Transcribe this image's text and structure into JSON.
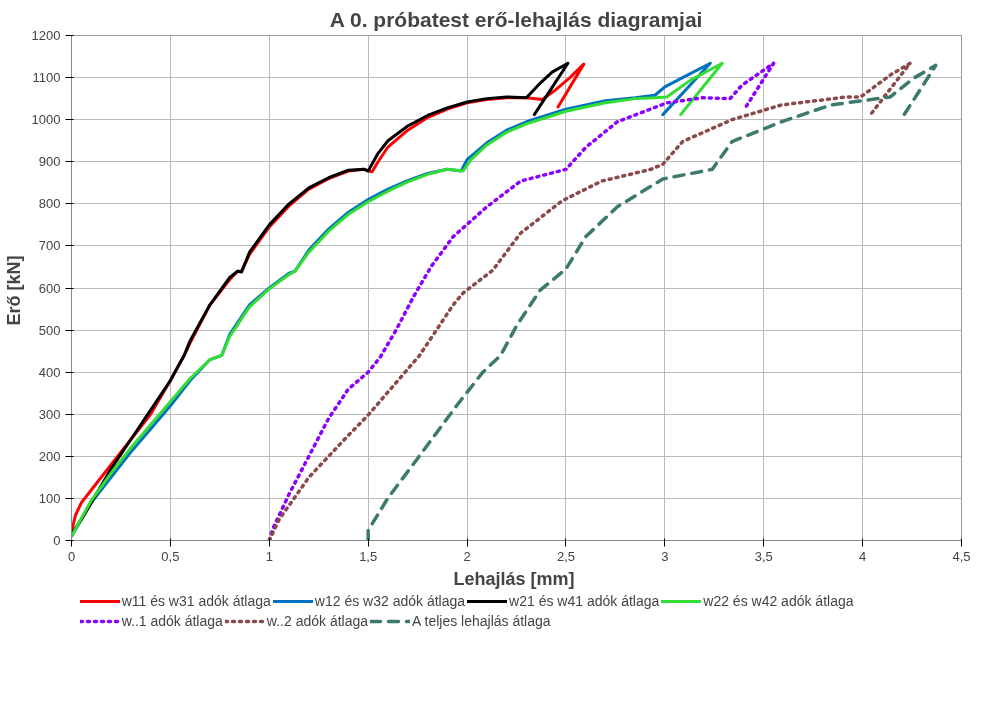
{
  "chart_data": {
    "type": "line",
    "title": "A 0. próbatest erő-lehajlás diagramjai",
    "xlabel": "Lehajlás  [mm]",
    "ylabel": "Erő  [kN]",
    "xlim": [
      0,
      4.5
    ],
    "ylim": [
      0,
      1200
    ],
    "xticks": [
      0,
      {
        "value": 0.5,
        "label": "0,5"
      },
      1,
      {
        "value": 1.5,
        "label": "1,5"
      },
      2,
      {
        "value": 2.5,
        "label": "2,5"
      },
      3,
      {
        "value": 3.5,
        "label": "3,5"
      },
      4,
      {
        "value": 4.5,
        "label": "4,5"
      }
    ],
    "yticks": [
      0,
      100,
      200,
      300,
      400,
      500,
      600,
      700,
      800,
      900,
      1000,
      1100,
      1200
    ],
    "grid": true,
    "legend": "bottom",
    "marker": "none",
    "series": [
      {
        "name": "w11 és w31 adók átlaga",
        "color": "#ff0000",
        "line_style": "solid",
        "x": [
          0,
          0.02,
          0.05,
          0.1,
          0.2,
          0.3,
          0.4,
          0.5,
          0.57,
          0.6,
          0.7,
          0.8,
          0.84,
          0.86,
          0.9,
          1.0,
          1.1,
          1.2,
          1.3,
          1.4,
          1.48,
          1.52,
          1.55,
          1.6,
          1.7,
          1.8,
          1.9,
          2.0,
          2.1,
          2.2,
          2.3,
          2.38,
          2.44,
          2.52,
          2.59,
          2.46
        ],
        "values": [
          20,
          60,
          90,
          120,
          180,
          240,
          300,
          380,
          440,
          470,
          560,
          620,
          640,
          640,
          680,
          745,
          795,
          835,
          860,
          878,
          882,
          876,
          900,
          935,
          975,
          1005,
          1025,
          1040,
          1048,
          1052,
          1052,
          1048,
          1068,
          1100,
          1132,
          1030
        ]
      },
      {
        "name": "w12 és w32 adók átlaga",
        "color": "#0070c0",
        "line_style": "solid",
        "x": [
          0,
          0.1,
          0.2,
          0.3,
          0.4,
          0.5,
          0.6,
          0.7,
          0.76,
          0.8,
          0.9,
          1.0,
          1.1,
          1.13,
          1.2,
          1.3,
          1.4,
          1.5,
          1.6,
          1.7,
          1.8,
          1.9,
          1.97,
          2.0,
          2.1,
          2.2,
          2.3,
          2.5,
          2.7,
          2.85,
          2.95,
          3.0,
          3.09,
          3.23,
          2.99
        ],
        "values": [
          10,
          90,
          150,
          210,
          265,
          320,
          380,
          430,
          440,
          490,
          560,
          600,
          635,
          640,
          690,
          740,
          780,
          810,
          835,
          855,
          872,
          882,
          878,
          905,
          945,
          975,
          995,
          1025,
          1045,
          1052,
          1058,
          1078,
          1100,
          1134,
          1012
        ]
      },
      {
        "name": "w21 és w41 adók átlaga",
        "color": "#000000",
        "line_style": "solid",
        "x": [
          0,
          0.05,
          0.1,
          0.2,
          0.3,
          0.4,
          0.5,
          0.57,
          0.6,
          0.7,
          0.8,
          0.84,
          0.86,
          0.9,
          1.0,
          1.1,
          1.2,
          1.3,
          1.4,
          1.48,
          1.5,
          1.55,
          1.6,
          1.7,
          1.8,
          1.9,
          2.0,
          2.1,
          2.2,
          2.3,
          2.37,
          2.43,
          2.51,
          2.34
        ],
        "values": [
          15,
          50,
          90,
          170,
          240,
          310,
          380,
          440,
          475,
          560,
          625,
          640,
          638,
          685,
          750,
          800,
          838,
          862,
          880,
          882,
          878,
          920,
          950,
          985,
          1010,
          1028,
          1042,
          1050,
          1054,
          1052,
          1087,
          1113,
          1134,
          1012
        ]
      },
      {
        "name": "w22 és w42 adók átlaga",
        "color": "#33dd33",
        "line_style": "solid",
        "x": [
          0,
          0.1,
          0.2,
          0.3,
          0.4,
          0.5,
          0.6,
          0.7,
          0.76,
          0.8,
          0.9,
          1.0,
          1.1,
          1.13,
          1.2,
          1.3,
          1.4,
          1.5,
          1.6,
          1.7,
          1.8,
          1.9,
          1.98,
          2.02,
          2.1,
          2.2,
          2.3,
          2.5,
          2.7,
          2.85,
          2.95,
          3.01,
          3.13,
          3.29,
          3.08
        ],
        "values": [
          10,
          95,
          160,
          220,
          275,
          330,
          385,
          430,
          440,
          485,
          555,
          598,
          632,
          640,
          685,
          735,
          775,
          805,
          830,
          852,
          870,
          882,
          878,
          905,
          940,
          970,
          990,
          1020,
          1040,
          1050,
          1052,
          1054,
          1094,
          1134,
          1012
        ]
      },
      {
        "name": "w..1 adók átlaga",
        "color": "#8b00ff",
        "line_style": "dotted",
        "x": [
          1.0,
          1.02,
          1.1,
          1.2,
          1.3,
          1.4,
          1.5,
          1.56,
          1.64,
          1.73,
          1.82,
          1.93,
          2.1,
          2.27,
          2.5,
          2.6,
          2.76,
          3.01,
          3.19,
          3.33,
          3.39,
          3.55,
          3.4
        ],
        "values": [
          0,
          30,
          110,
          200,
          290,
          360,
          400,
          435,
          499,
          580,
          652,
          722,
          793,
          854,
          882,
          934,
          995,
          1040,
          1052,
          1050,
          1082,
          1134,
          1023
        ]
      },
      {
        "name": "w..2 adók átlaga",
        "color": "#8b4a4a",
        "line_style": "dotted",
        "x": [
          1.0,
          1.05,
          1.2,
          1.4,
          1.5,
          1.76,
          1.93,
          1.98,
          2.13,
          2.27,
          2.48,
          2.68,
          2.93,
          2.99,
          3.09,
          3.34,
          3.59,
          3.92,
          3.99,
          4.14,
          4.24,
          4.04
        ],
        "values": [
          0,
          50,
          150,
          250,
          298,
          440,
          560,
          588,
          642,
          730,
          807,
          854,
          882,
          894,
          948,
          1000,
          1035,
          1054,
          1054,
          1106,
          1134,
          1012
        ]
      },
      {
        "name": "A teljes lehajlás átlaga",
        "color": "#3c7a6e",
        "line_style": "dashed",
        "x": [
          1.5,
          1.5,
          1.6,
          1.75,
          1.95,
          2.08,
          2.17,
          2.25,
          2.37,
          2.5,
          2.6,
          2.76,
          2.99,
          3.24,
          3.34,
          3.59,
          3.84,
          4.14,
          4.26,
          4.37,
          4.21
        ],
        "values": [
          0,
          24,
          101,
          195,
          322,
          400,
          440,
          510,
          595,
          645,
          722,
          793,
          859,
          882,
          948,
          995,
          1035,
          1054,
          1099,
          1129,
          1012
        ]
      }
    ]
  }
}
